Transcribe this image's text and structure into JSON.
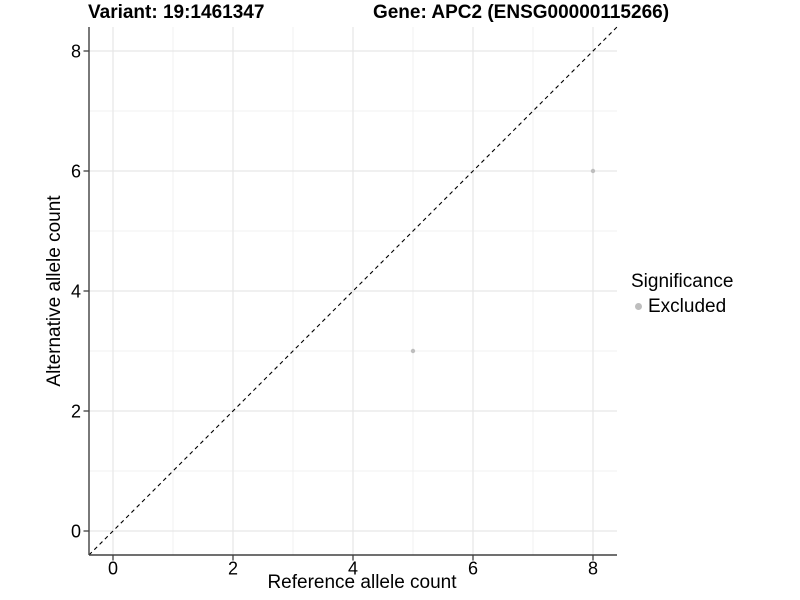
{
  "chart_data": {
    "type": "scatter",
    "title_left": "Variant: 19:1461347",
    "title_right": "Gene: APC2 (ENSG00000115266)",
    "xlabel": "Reference allele count",
    "ylabel": "Alternative allele count",
    "xlim": [
      -0.4,
      8.4
    ],
    "ylim": [
      -0.4,
      8.4
    ],
    "x_ticks": [
      0,
      2,
      4,
      6,
      8
    ],
    "x_minor_ticks": [
      1,
      3,
      5,
      7
    ],
    "y_ticks": [
      0,
      2,
      4,
      6,
      8
    ],
    "y_minor_ticks": [
      1,
      3,
      5,
      7
    ],
    "grid": "major+minor",
    "identity_line": {
      "style": "dashed",
      "color": "#000000",
      "from": -0.4,
      "to": 8.4
    },
    "series": [
      {
        "name": "Excluded",
        "color": "#BEBEBE",
        "marker": "circle",
        "points": [
          {
            "x": 5,
            "y": 3
          },
          {
            "x": 8,
            "y": 6
          }
        ]
      }
    ],
    "legend": {
      "title": "Significance",
      "position": "right",
      "entries": [
        {
          "label": "Excluded",
          "color": "#BEBEBE"
        }
      ]
    },
    "colors": {
      "axis_line": "#404040",
      "tick_mark": "#404040",
      "grid_major": "#E7E7E7",
      "grid_minor": "#F0F0F0",
      "text": "#000000",
      "point": "#BEBEBE",
      "background": "#FFFFFF"
    }
  }
}
